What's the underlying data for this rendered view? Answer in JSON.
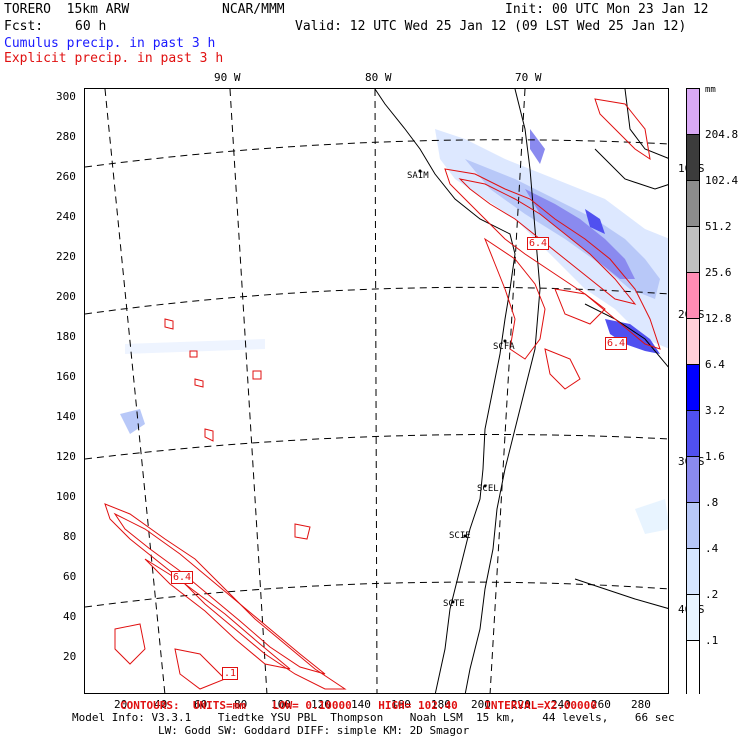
{
  "header": {
    "title_left": "TORERO  15km ARW",
    "title_center": "NCAR/MMM",
    "fcst_label": "Fcst:",
    "fcst_value": "60 h",
    "init": "Init: 00 UTC Mon 23 Jan 12",
    "valid": "Valid: 12 UTC Wed 25 Jan 12 (09 LST Wed 25 Jan 12)",
    "cumulus": "Cumulus precip. in past 3 h",
    "explicit": "Explicit precip. in past 3 h"
  },
  "colors": {
    "cumulus_text": "#1a1aff",
    "explicit_text": "#e01010",
    "contour": "#e01010"
  },
  "map": {
    "lon_labels": [
      "90 W",
      "80 W",
      "70 W"
    ],
    "lat_labels": [
      "10 S",
      "20 S",
      "30 S",
      "40 S"
    ],
    "y_ticks": [
      "300",
      "280",
      "260",
      "240",
      "220",
      "200",
      "180",
      "160",
      "140",
      "120",
      "100",
      "80",
      "60",
      "40",
      "20"
    ],
    "x_ticks": [
      "20",
      "40",
      "60",
      "80",
      "100",
      "120",
      "140",
      "160",
      "180",
      "200",
      "220",
      "240",
      "260",
      "280"
    ],
    "stations": [
      "SAIM",
      "SCFA",
      "SCEL",
      "SCIE",
      "SCTE"
    ],
    "contour_labels": [
      "6.4",
      "6.4",
      ".1",
      "6.4",
      ".4"
    ]
  },
  "colorbar": {
    "unit": "mm",
    "levels": [
      "204.8",
      "102.4",
      "51.2",
      "25.6",
      "12.8",
      "6.4",
      "3.2",
      "1.6",
      ".8",
      ".4",
      ".2",
      ".1"
    ],
    "colors": [
      "#d9a9f5",
      "#3c3c3c",
      "#8c8c8c",
      "#c0c0c0",
      "#ff8cb4",
      "#ffd0d8",
      "#0000ff",
      "#5050f0",
      "#8a8aef",
      "#b8c8f8",
      "#d6e6ff",
      "#e8f4ff",
      "#ffffff"
    ]
  },
  "footer": {
    "contours": "CONTOURS:  UNITS=mm    LOW= 0.10000    HIGH= 102.40    INTERVAL=X2.00000",
    "model_info": "Model Info: V3.3.1    Tiedtke YSU PBL  Thompson    Noah LSM  15 km,    44 levels,    66 sec",
    "model_info2": "LW: Godd SW: Goddard DIFF: simple KM: 2D Smagor"
  }
}
